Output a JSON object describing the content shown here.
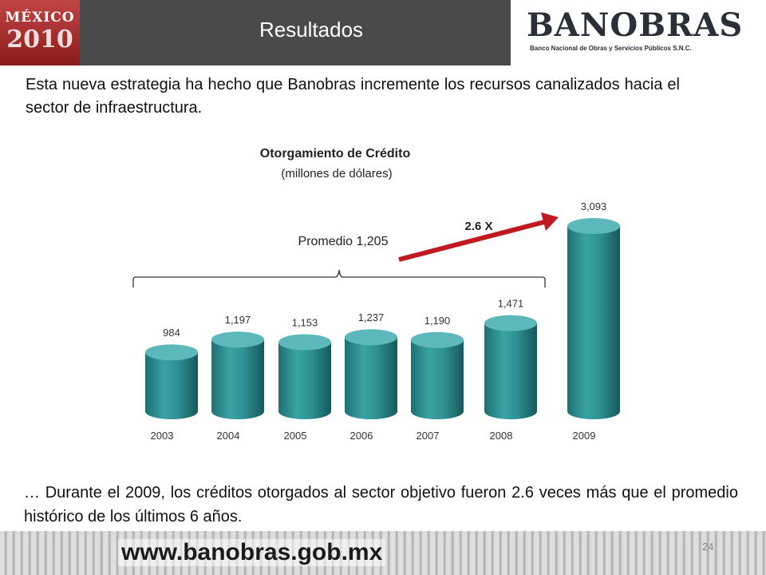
{
  "header": {
    "title": "Resultados",
    "logo_left_word": "MÉXICO",
    "logo_left_year": "2010",
    "logo_right_word": "BANOBRAS",
    "logo_right_sub": "Banco Nacional de Obras y Servicios Públicos S.N.C."
  },
  "intro_text": "Esta nueva estrategia ha hecho que Banobras incremente los recursos canalizados hacia el sector de infraestructura.",
  "chart_data": {
    "type": "bar",
    "title": "Otorgamiento de Crédito",
    "subtitle": "(millones de dólares)",
    "categories": [
      "2003",
      "2004",
      "2005",
      "2006",
      "2007",
      "2008",
      "2009"
    ],
    "values": [
      984,
      1197,
      1153,
      1237,
      1190,
      1471,
      3093
    ],
    "value_labels": [
      "984",
      "1,197",
      "1,153",
      "1,237",
      "1,190",
      "1,471",
      "3,093"
    ],
    "bar_color": "#2e8f91",
    "arrow_color": "#c0191f",
    "annotations": {
      "average": "Promedio 1,205",
      "multiplier": "2.6 X"
    }
  },
  "closing_text": "… Durante el 2009, los créditos otorgados al sector objetivo fueron 2.6 veces más que el promedio histórico de los últimos 6 años.",
  "footer": {
    "url": "www.banobras.gob.mx",
    "page_number": "24"
  }
}
